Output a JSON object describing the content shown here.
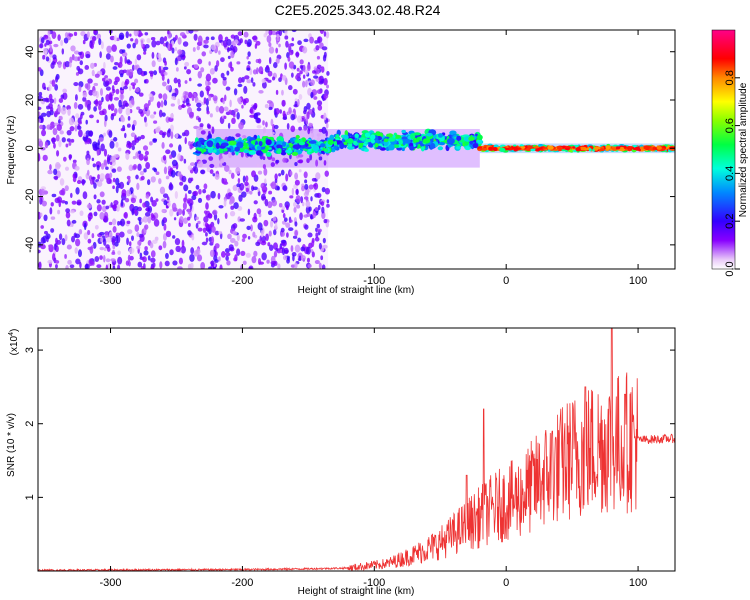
{
  "title": "C2E5.2025.343.02.48.R24",
  "chart_data": [
    {
      "type": "heatmap",
      "xlabel": "Height of straight line (km)",
      "ylabel": "Frequency (Hz)",
      "xlim": [
        -355,
        128
      ],
      "ylim": [
        -50,
        49
      ],
      "xticks": [
        -300,
        -200,
        -100,
        0,
        100
      ],
      "yticks": [
        -40,
        -20,
        0,
        20,
        40
      ],
      "colorbar": {
        "label": "Normalized spectral amplitude",
        "range": [
          0,
          1
        ],
        "ticks": [
          0.0,
          0.2,
          0.4,
          0.6,
          0.8
        ],
        "tick_labels": [
          "0.0",
          "0.2",
          "0.4",
          "0.6",
          "0.8"
        ],
        "colormap": "rainbow (white-violet-blue-cyan-green-yellow-red-magenta)"
      },
      "regions": [
        {
          "description": "noise",
          "x": [
            -355,
            -135
          ],
          "freq": [
            -50,
            49
          ],
          "amplitude": 0.1
        },
        {
          "description": "signal band",
          "x": [
            -235,
            -20
          ],
          "freq": [
            -8,
            8
          ],
          "amplitude": 0.35
        },
        {
          "description": "signal band",
          "x": [
            -20,
            128
          ],
          "freq": [
            -2,
            2
          ],
          "amplitude": 0.85
        }
      ]
    },
    {
      "type": "line",
      "xlabel": "Height of straight line (km)",
      "ylabel": "SNR (10 * v/v)",
      "yscale_label": "(x10",
      "yscale_exponent": "4",
      "xlim": [
        -355,
        128
      ],
      "ylim": [
        0,
        3.3
      ],
      "xticks": [
        -300,
        -200,
        -100,
        0,
        100
      ],
      "yticks": [
        1,
        2,
        3
      ],
      "color": "#ee3333",
      "envelope": [
        {
          "x": -355,
          "y": 0.01
        },
        {
          "x": -200,
          "y": 0.02
        },
        {
          "x": -150,
          "y": 0.03
        },
        {
          "x": -120,
          "y": 0.04
        },
        {
          "x": -90,
          "y": 0.1
        },
        {
          "x": -70,
          "y": 0.22
        },
        {
          "x": -50,
          "y": 0.38
        },
        {
          "x": -30,
          "y": 0.62
        },
        {
          "x": -10,
          "y": 0.85
        },
        {
          "x": 10,
          "y": 1.0
        },
        {
          "x": 30,
          "y": 1.3
        },
        {
          "x": 50,
          "y": 1.55
        },
        {
          "x": 70,
          "y": 1.7
        },
        {
          "x": 100,
          "y": 1.78
        },
        {
          "x": 128,
          "y": 1.8
        }
      ],
      "peaks": [
        {
          "x": -30,
          "y": 1.3
        },
        {
          "x": -17,
          "y": 2.2
        },
        {
          "x": 35,
          "y": 1.9
        },
        {
          "x": 60,
          "y": 2.5
        },
        {
          "x": 80,
          "y": 3.3
        },
        {
          "x": 90,
          "y": 2.4
        }
      ]
    }
  ]
}
